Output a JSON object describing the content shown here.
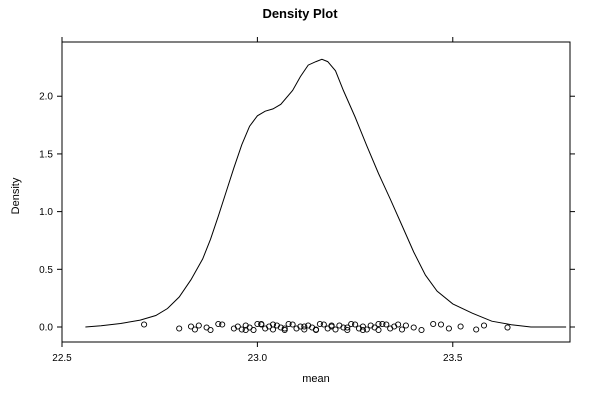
{
  "chart_data": {
    "type": "density",
    "title": "Density Plot",
    "xlabel": "mean",
    "ylabel": "Density",
    "xlim": [
      22.5,
      23.8
    ],
    "ylim": [
      -0.13,
      2.47
    ],
    "x_ticks": [
      {
        "value": 22.5,
        "label": "22.5"
      },
      {
        "value": 23.0,
        "label": "23.0"
      },
      {
        "value": 23.5,
        "label": "23.5"
      }
    ],
    "y_ticks": [
      {
        "value": 0.0,
        "label": "0.0"
      },
      {
        "value": 0.5,
        "label": "0.5"
      },
      {
        "value": 1.0,
        "label": "1.0"
      },
      {
        "value": 1.5,
        "label": "1.5"
      },
      {
        "value": 2.0,
        "label": "2.0"
      }
    ],
    "grid": false,
    "density_curve": {
      "x": [
        22.56,
        22.6,
        22.65,
        22.7,
        22.74,
        22.77,
        22.8,
        22.83,
        22.86,
        22.88,
        22.9,
        22.92,
        22.94,
        22.96,
        22.98,
        23.0,
        23.02,
        23.04,
        23.06,
        23.09,
        23.11,
        23.13,
        23.15,
        23.165,
        23.18,
        23.2,
        23.22,
        23.25,
        23.28,
        23.31,
        23.34,
        23.37,
        23.4,
        23.43,
        23.46,
        23.5,
        23.55,
        23.6,
        23.65,
        23.7,
        23.75,
        23.79
      ],
      "y": [
        0.0,
        0.01,
        0.03,
        0.06,
        0.1,
        0.16,
        0.26,
        0.41,
        0.59,
        0.76,
        0.96,
        1.17,
        1.38,
        1.58,
        1.74,
        1.83,
        1.87,
        1.89,
        1.93,
        2.05,
        2.17,
        2.27,
        2.3,
        2.32,
        2.3,
        2.22,
        2.05,
        1.82,
        1.57,
        1.33,
        1.11,
        0.88,
        0.65,
        0.45,
        0.31,
        0.2,
        0.12,
        0.05,
        0.02,
        0.0,
        0.0,
        0.0
      ]
    },
    "rug_points": [
      22.71,
      22.8,
      22.83,
      22.84,
      22.85,
      22.87,
      22.88,
      22.9,
      22.91,
      22.94,
      22.95,
      22.96,
      22.97,
      22.98,
      22.99,
      23.0,
      23.01,
      23.02,
      23.03,
      23.04,
      23.05,
      23.06,
      23.07,
      23.08,
      23.09,
      23.1,
      23.11,
      23.12,
      23.13,
      23.14,
      23.15,
      23.16,
      23.17,
      23.18,
      23.19,
      23.2,
      23.21,
      23.22,
      23.23,
      23.24,
      23.25,
      23.26,
      23.27,
      23.28,
      23.29,
      23.3,
      23.31,
      23.32,
      23.33,
      23.34,
      23.35,
      23.37,
      23.38,
      23.4,
      23.42,
      23.45,
      23.47,
      23.49,
      23.52,
      23.56,
      23.58,
      23.64,
      22.97,
      23.01,
      23.04,
      23.07,
      23.12,
      23.15,
      23.19,
      23.23,
      23.27,
      23.31,
      23.36
    ]
  }
}
